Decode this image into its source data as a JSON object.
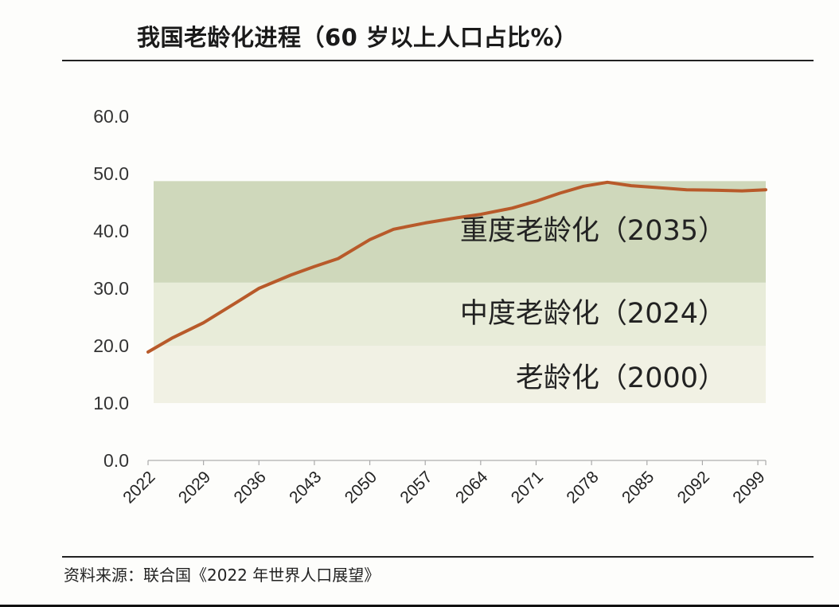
{
  "header": {
    "title": "我国老龄化进程（60 岁以上人口占比%）"
  },
  "footer": {
    "source": "资料来源：联合国《2022 年世界人口展望》"
  },
  "chart_data": {
    "type": "line",
    "title": "我国老龄化进程（60 岁以上人口占比%）",
    "xlabel": "",
    "ylabel": "",
    "ylim": [
      0,
      60
    ],
    "yticks": [
      0,
      10,
      20,
      30,
      40,
      50,
      60
    ],
    "ytick_labels": [
      "0.0",
      "10.0",
      "20.0",
      "30.0",
      "40.0",
      "50.0",
      "60.0"
    ],
    "xlim": [
      2022,
      2100
    ],
    "xticks": [
      2022,
      2029,
      2036,
      2043,
      2050,
      2057,
      2064,
      2071,
      2078,
      2085,
      2092,
      2099
    ],
    "xtick_labels": [
      "2022",
      "2029",
      "2036",
      "2043",
      "2050",
      "2057",
      "2064",
      "2071",
      "2078",
      "2085",
      "2092",
      "2099"
    ],
    "bands": [
      {
        "label": "老龄化（2000）",
        "from": 10,
        "to": 20,
        "color": "#f1f1e4"
      },
      {
        "label": "中度老龄化（2024）",
        "from": 20,
        "to": 31,
        "color": "#e8ecd9"
      },
      {
        "label": "重度老龄化（2035）",
        "from": 31,
        "to": 48.7,
        "color": "#cfd8bb"
      }
    ],
    "series": [
      {
        "name": "60岁以上人口占比",
        "color": "#b85a2a",
        "x": [
          2022,
          2025,
          2029,
          2033,
          2036,
          2040,
          2043,
          2046,
          2050,
          2053,
          2057,
          2061,
          2064,
          2068,
          2071,
          2074,
          2077,
          2080,
          2083,
          2086,
          2090,
          2094,
          2097,
          2100
        ],
        "y": [
          18.9,
          21.3,
          24.0,
          27.4,
          30.0,
          32.3,
          33.8,
          35.2,
          38.5,
          40.3,
          41.4,
          42.3,
          42.9,
          44.0,
          45.2,
          46.6,
          47.8,
          48.5,
          47.9,
          47.6,
          47.2,
          47.1,
          47.0,
          47.2
        ]
      }
    ]
  }
}
